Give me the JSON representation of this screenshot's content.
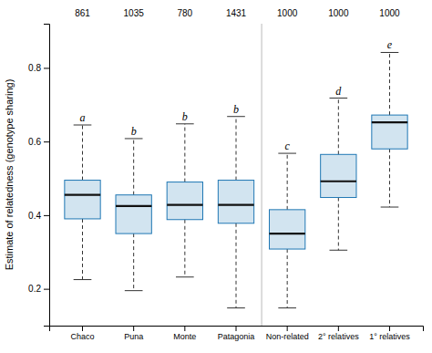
{
  "chart_data": {
    "type": "box",
    "categories": [
      "Chaco",
      "Puna",
      "Monte",
      "Patagonia",
      "Non-related",
      "2° relatives",
      "1° relatives"
    ],
    "boxes": [
      {
        "q1": 0.39,
        "median": 0.455,
        "q3": 0.495,
        "whislo": 0.225,
        "whishi": 0.645
      },
      {
        "q1": 0.35,
        "median": 0.425,
        "q3": 0.455,
        "whislo": 0.195,
        "whishi": 0.608
      },
      {
        "q1": 0.388,
        "median": 0.428,
        "q3": 0.49,
        "whislo": 0.232,
        "whishi": 0.648
      },
      {
        "q1": 0.378,
        "median": 0.428,
        "q3": 0.495,
        "whislo": 0.148,
        "whishi": 0.668
      },
      {
        "q1": 0.308,
        "median": 0.35,
        "q3": 0.415,
        "whislo": 0.148,
        "whishi": 0.568
      },
      {
        "q1": 0.448,
        "median": 0.492,
        "q3": 0.565,
        "whislo": 0.305,
        "whishi": 0.718
      },
      {
        "q1": 0.58,
        "median": 0.652,
        "q3": 0.672,
        "whislo": 0.422,
        "whishi": 0.842
      }
    ],
    "n_values": [
      861,
      1035,
      780,
      1431,
      1000,
      1000,
      1000
    ],
    "sig_labels": [
      "a",
      "b",
      "b",
      "b",
      "c",
      "d",
      "e"
    ],
    "ylabel": "Estimate of relatedness (genotype sharing)",
    "ylim": [
      0.1,
      0.92
    ],
    "yticks": [
      0.2,
      0.4,
      0.6,
      0.8
    ],
    "grid": false
  }
}
